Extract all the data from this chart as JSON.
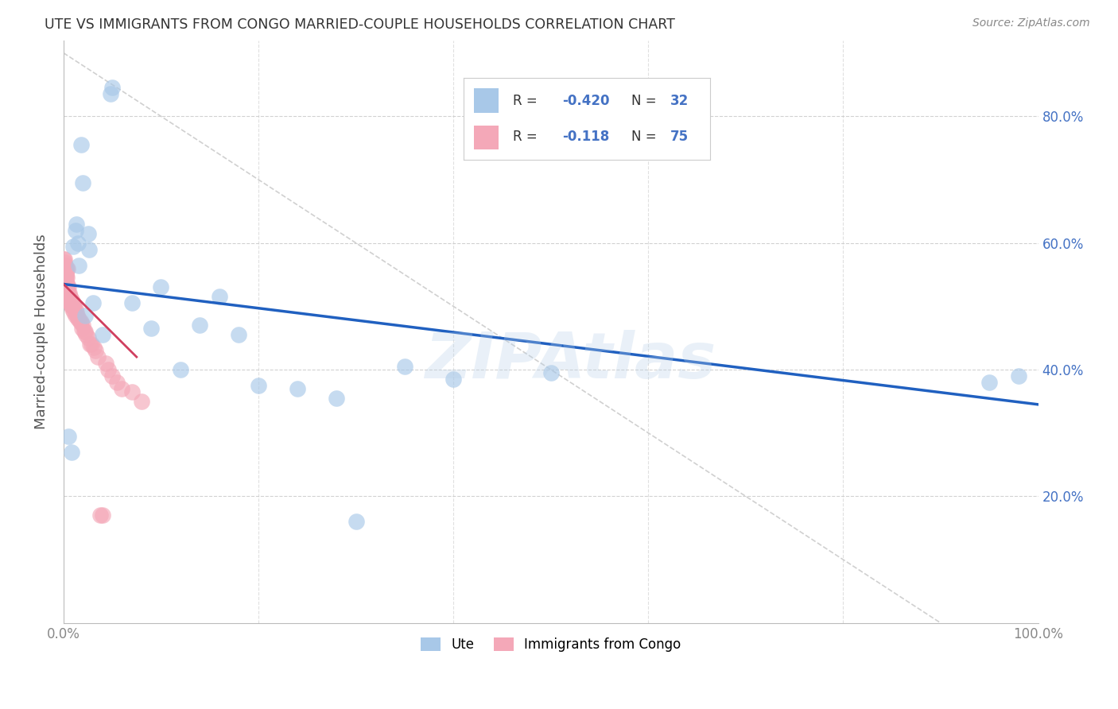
{
  "title": "UTE VS IMMIGRANTS FROM CONGO MARRIED-COUPLE HOUSEHOLDS CORRELATION CHART",
  "source": "Source: ZipAtlas.com",
  "ylabel": "Married-couple Households",
  "ute_color": "#a8c8e8",
  "congo_color": "#f4a8b8",
  "ute_line_color": "#2060c0",
  "congo_line_color": "#d04060",
  "ref_line_color": "#d0d0d0",
  "watermark": "ZIPAtlas",
  "ytick_values": [
    0.2,
    0.4,
    0.6,
    0.8
  ],
  "ute_r": "-0.420",
  "ute_n": "32",
  "congo_r": "-0.118",
  "congo_n": "75",
  "ute_scatter_x": [
    0.005,
    0.008,
    0.01,
    0.012,
    0.013,
    0.015,
    0.016,
    0.018,
    0.02,
    0.022,
    0.025,
    0.026,
    0.03,
    0.04,
    0.048,
    0.05,
    0.07,
    0.09,
    0.1,
    0.12,
    0.14,
    0.16,
    0.18,
    0.2,
    0.24,
    0.28,
    0.3,
    0.35,
    0.4,
    0.5,
    0.95,
    0.98
  ],
  "ute_scatter_y": [
    0.295,
    0.27,
    0.595,
    0.62,
    0.63,
    0.6,
    0.565,
    0.755,
    0.695,
    0.485,
    0.615,
    0.59,
    0.505,
    0.455,
    0.835,
    0.845,
    0.505,
    0.465,
    0.53,
    0.4,
    0.47,
    0.515,
    0.455,
    0.375,
    0.37,
    0.355,
    0.16,
    0.405,
    0.385,
    0.395,
    0.38,
    0.39
  ],
  "congo_scatter_x": [
    0.0005,
    0.0006,
    0.0007,
    0.0008,
    0.001,
    0.001,
    0.0012,
    0.0013,
    0.0014,
    0.0015,
    0.0016,
    0.0017,
    0.0018,
    0.002,
    0.002,
    0.0022,
    0.0023,
    0.0024,
    0.0025,
    0.003,
    0.003,
    0.0032,
    0.0034,
    0.0036,
    0.004,
    0.004,
    0.0042,
    0.0045,
    0.005,
    0.005,
    0.0055,
    0.006,
    0.006,
    0.0065,
    0.007,
    0.007,
    0.0075,
    0.008,
    0.008,
    0.0085,
    0.009,
    0.009,
    0.0095,
    0.01,
    0.01,
    0.011,
    0.011,
    0.012,
    0.012,
    0.013,
    0.014,
    0.015,
    0.016,
    0.017,
    0.018,
    0.019,
    0.02,
    0.021,
    0.022,
    0.023,
    0.025,
    0.027,
    0.029,
    0.031,
    0.033,
    0.035,
    0.038,
    0.04,
    0.043,
    0.046,
    0.05,
    0.055,
    0.06,
    0.07,
    0.08
  ],
  "congo_scatter_y": [
    0.575,
    0.565,
    0.57,
    0.56,
    0.575,
    0.555,
    0.565,
    0.555,
    0.56,
    0.56,
    0.555,
    0.545,
    0.555,
    0.565,
    0.545,
    0.56,
    0.55,
    0.545,
    0.55,
    0.56,
    0.535,
    0.545,
    0.535,
    0.53,
    0.56,
    0.525,
    0.525,
    0.52,
    0.53,
    0.52,
    0.515,
    0.52,
    0.51,
    0.505,
    0.515,
    0.505,
    0.505,
    0.51,
    0.5,
    0.5,
    0.505,
    0.495,
    0.5,
    0.5,
    0.505,
    0.49,
    0.5,
    0.495,
    0.485,
    0.49,
    0.485,
    0.48,
    0.48,
    0.475,
    0.475,
    0.465,
    0.47,
    0.46,
    0.46,
    0.455,
    0.45,
    0.44,
    0.44,
    0.435,
    0.43,
    0.42,
    0.17,
    0.17,
    0.41,
    0.4,
    0.39,
    0.38,
    0.37,
    0.365,
    0.35
  ],
  "ute_trend_x": [
    0.0,
    1.0
  ],
  "ute_trend_y": [
    0.535,
    0.345
  ],
  "congo_trend_x": [
    0.0,
    0.075
  ],
  "congo_trend_y": [
    0.535,
    0.42
  ],
  "ref_line_x": [
    0.0,
    0.9
  ],
  "ref_line_y": [
    0.9,
    0.0
  ],
  "xlim": [
    0.0,
    1.0
  ],
  "ylim": [
    0.0,
    0.92
  ]
}
